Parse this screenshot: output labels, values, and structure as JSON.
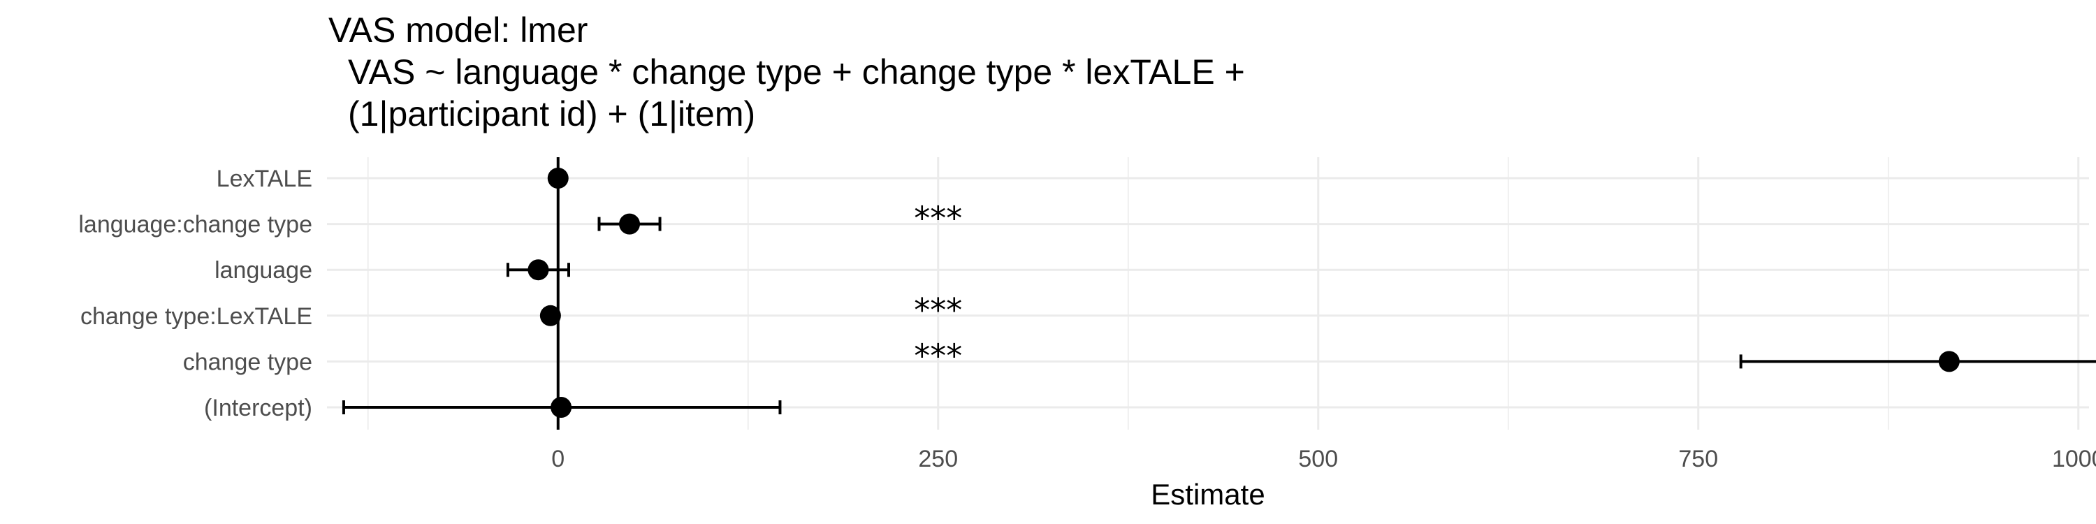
{
  "chart_data": {
    "type": "scatter",
    "title": [
      "VAS model: lmer",
      "VAS ~ language * change type + change type * lexTALE +",
      "(1|participant id) + (1|item)"
    ],
    "xlabel": "Estimate",
    "ylabel": "",
    "xlim": [
      -152,
      1007
    ],
    "x_ticks": [
      0,
      250,
      500,
      750,
      1000
    ],
    "x_tick_labels": [
      "0",
      "250",
      "500",
      "750",
      "1000"
    ],
    "reference_line_x": 0,
    "grid": true,
    "legend": "none",
    "terms": [
      {
        "label": "LexTALE",
        "estimate": 0,
        "ci_low": 0,
        "ci_high": 0,
        "significance": ""
      },
      {
        "label": "language:change type",
        "estimate": 47,
        "ci_low": 27,
        "ci_high": 67,
        "significance": "***"
      },
      {
        "label": "language",
        "estimate": -13,
        "ci_low": -33,
        "ci_high": 7,
        "significance": ""
      },
      {
        "label": "change type:LexTALE",
        "estimate": -5,
        "ci_low": -5,
        "ci_high": -5,
        "significance": "***"
      },
      {
        "label": "change type",
        "estimate": 915,
        "ci_low": 778,
        "ci_high": 1052,
        "significance": "***"
      },
      {
        "label": "(Intercept)",
        "estimate": 2,
        "ci_low": -141,
        "ci_high": 146,
        "significance": ""
      }
    ],
    "significance_x": 250,
    "colors": {
      "point": "#000000",
      "grid": "#ebebeb",
      "tick_text": "#4d4d4d"
    }
  }
}
